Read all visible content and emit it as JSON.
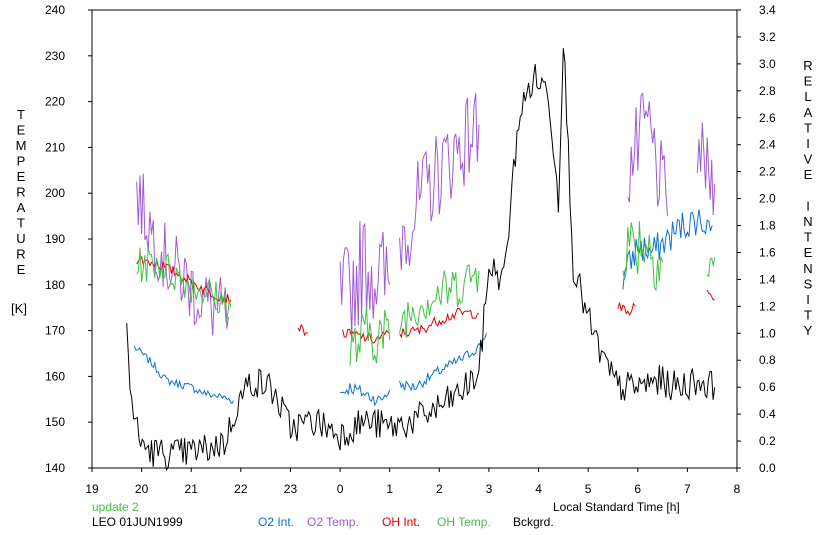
{
  "chart_data": {
    "type": "line",
    "left_axis": {
      "label": "TEMPERATURE",
      "unit": "[K]",
      "min": 140,
      "max": 240,
      "ticks": [
        "140",
        "150",
        "160",
        "170",
        "180",
        "190",
        "200",
        "210",
        "220",
        "230",
        "240"
      ]
    },
    "right_axis": {
      "label": "RELATIVE INTENSITY",
      "min": 0.0,
      "max": 3.4,
      "ticks": [
        "0.0",
        "0.2",
        "0.4",
        "0.6",
        "0.8",
        "1.0",
        "1.2",
        "1.4",
        "1.6",
        "1.8",
        "2.0",
        "2.2",
        "2.4",
        "2.6",
        "2.8",
        "3.0",
        "3.2",
        "3.4"
      ]
    },
    "x_axis": {
      "label": "Local Standard Time [h]",
      "min": 19,
      "max": 32,
      "tick_values": [
        19,
        20,
        21,
        22,
        23,
        24,
        25,
        26,
        27,
        28,
        29,
        30,
        31,
        32
      ],
      "tick_labels": [
        "19",
        "20",
        "21",
        "22",
        "23",
        "0",
        "1",
        "2",
        "3",
        "4",
        "5",
        "6",
        "7",
        "8"
      ]
    },
    "notes": {
      "update": "update 2",
      "station": "LEO 01JUN1999"
    },
    "legend": [
      {
        "key": "o2_int",
        "label": "O2 Int.",
        "color": "#0b6fd9",
        "axis": "right"
      },
      {
        "key": "o2_temp",
        "label": "O2 Temp.",
        "color": "#a05ad6",
        "axis": "left"
      },
      {
        "key": "oh_int",
        "label": "OH Int.",
        "color": "#e00000",
        "axis": "right"
      },
      {
        "key": "oh_temp",
        "label": "OH Temp.",
        "color": "#44c044",
        "axis": "left"
      },
      {
        "key": "bckgrd",
        "label": "Bckgrd.",
        "color": "#000000",
        "axis": "right"
      }
    ],
    "series": [
      {
        "key": "o2_int",
        "segments": [
          {
            "x": [
              19.85,
              20.0,
              20.2,
              20.5,
              20.8,
              21.0,
              21.3,
              21.6,
              21.85
            ],
            "y": [
              0.9,
              0.85,
              0.78,
              0.65,
              0.62,
              0.6,
              0.55,
              0.53,
              0.5
            ],
            "noise": 0.03
          },
          {
            "x": [
              24.0,
              24.2,
              24.5,
              24.8,
              25.0
            ],
            "y": [
              0.55,
              0.6,
              0.55,
              0.5,
              0.58
            ],
            "noise": 0.05
          },
          {
            "x": [
              25.2,
              25.5,
              26.0,
              26.5,
              26.8,
              26.95
            ],
            "y": [
              0.62,
              0.6,
              0.72,
              0.82,
              0.9,
              1.0
            ],
            "noise": 0.04
          },
          {
            "x": [
              29.7,
              30.0,
              30.3,
              30.6,
              30.9,
              31.2,
              31.5
            ],
            "y": [
              1.4,
              1.65,
              1.6,
              1.7,
              1.8,
              1.85,
              1.8
            ],
            "noise": 0.12
          }
        ]
      },
      {
        "key": "o2_temp",
        "segments": [
          {
            "x": [
              19.9,
              20.2,
              20.5,
              20.8,
              21.1,
              21.4,
              21.75
            ],
            "y": [
              200,
              192,
              185,
              182,
              178,
              175,
              173
            ],
            "noise": 8
          },
          {
            "x": [
              24.0,
              24.5,
              25.0
            ],
            "y": [
              175,
              185,
              180
            ],
            "noise": 12
          },
          {
            "x": [
              25.2,
              25.6,
              26.0,
              26.4,
              26.8
            ],
            "y": [
              190,
              198,
              205,
              210,
              215
            ],
            "noise": 10
          },
          {
            "x": [
              29.8,
              30.2,
              30.6
            ],
            "y": [
              205,
              215,
              195
            ],
            "noise": 10
          },
          {
            "x": [
              31.2,
              31.4,
              31.55
            ],
            "y": [
              210,
              205,
              202
            ],
            "noise": 8
          }
        ]
      },
      {
        "key": "oh_int",
        "segments": [
          {
            "x": [
              19.9,
              20.3,
              20.7,
              21.0,
              21.4,
              21.8
            ],
            "y": [
              1.55,
              1.52,
              1.45,
              1.38,
              1.3,
              1.25
            ],
            "noise": 0.04
          },
          {
            "x": [
              23.15,
              23.35
            ],
            "y": [
              1.05,
              1.0
            ],
            "noise": 0.03
          },
          {
            "x": [
              24.05,
              24.4,
              24.7,
              25.0
            ],
            "y": [
              1.0,
              0.98,
              0.95,
              1.0
            ],
            "noise": 0.04
          },
          {
            "x": [
              25.2,
              25.6,
              26.0,
              26.4,
              26.8
            ],
            "y": [
              1.0,
              1.02,
              1.1,
              1.15,
              1.15
            ],
            "noise": 0.04
          },
          {
            "x": [
              29.6,
              29.8,
              29.95
            ],
            "y": [
              1.2,
              1.15,
              1.2
            ],
            "noise": 0.04
          },
          {
            "x": [
              31.4,
              31.55
            ],
            "y": [
              1.3,
              1.25
            ],
            "noise": 0.05
          }
        ]
      },
      {
        "key": "oh_temp",
        "segments": [
          {
            "x": [
              19.9,
              20.3,
              20.7,
              21.0,
              21.4,
              21.8
            ],
            "y": [
              184,
              185,
              182,
              180,
              178,
              175
            ],
            "noise": 4
          },
          {
            "x": [
              24.2,
              24.6,
              25.0
            ],
            "y": [
              165,
              170,
              168
            ],
            "noise": 7
          },
          {
            "x": [
              25.2,
              25.6,
              26.0,
              26.4,
              26.8
            ],
            "y": [
              172,
              176,
              178,
              180,
              183
            ],
            "noise": 5
          },
          {
            "x": [
              29.7,
              30.1,
              30.5
            ],
            "y": [
              188,
              190,
              185
            ],
            "noise": 8
          },
          {
            "x": [
              31.4,
              31.55
            ],
            "y": [
              182,
              186
            ],
            "noise": 5
          }
        ]
      },
      {
        "key": "bckgrd",
        "segments": [
          {
            "x": [
              19.7,
              19.8,
              19.95,
              20.2,
              20.6,
              21.0,
              21.4,
              21.7,
              21.9,
              22.2,
              22.6,
              23.0,
              23.5,
              24.0,
              24.5,
              25.0,
              25.5,
              26.0,
              26.4,
              26.8,
              27.0,
              27.3,
              27.6,
              27.9,
              28.2,
              28.4,
              28.5,
              28.7,
              29.0,
              29.3,
              29.6,
              30.0,
              30.4,
              30.8,
              31.2,
              31.55
            ],
            "y": [
              1.0,
              0.5,
              0.2,
              0.12,
              0.1,
              0.12,
              0.15,
              0.2,
              0.45,
              0.65,
              0.6,
              0.3,
              0.35,
              0.25,
              0.35,
              0.3,
              0.35,
              0.45,
              0.55,
              0.7,
              1.5,
              1.4,
              2.6,
              2.9,
              2.8,
              2.0,
              3.2,
              1.5,
              1.1,
              0.8,
              0.6,
              0.6,
              0.65,
              0.6,
              0.65,
              0.6
            ],
            "noise": 0.12
          }
        ]
      }
    ]
  }
}
